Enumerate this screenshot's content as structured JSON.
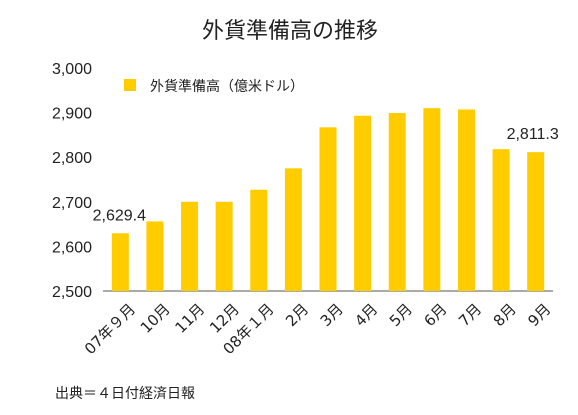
{
  "chart_data": {
    "type": "bar",
    "title": "外貨準備高の推移",
    "categories": [
      "07年９月",
      "10月",
      "11月",
      "12月",
      "08年１月",
      "2月",
      "3月",
      "4月",
      "5月",
      "6月",
      "7月",
      "8月",
      "9月"
    ],
    "series": [
      {
        "name": "外貨準備高（億米ドル）",
        "values": [
          2629.4,
          2656,
          2700,
          2700,
          2727,
          2775,
          2867,
          2893,
          2899,
          2910,
          2907,
          2818,
          2811.3
        ],
        "color": "#FFCC00"
      }
    ],
    "y_ticks": [
      "3,000",
      "2,900",
      "2,800",
      "2,700",
      "2,600",
      "2,500"
    ],
    "ylim": [
      2500,
      3000
    ],
    "data_labels": [
      {
        "index": 0,
        "text": "2,629.4"
      },
      {
        "index": 12,
        "text": "2,811.3"
      }
    ],
    "grid": false,
    "legend_position": "top-left",
    "source": "出典＝４日付経済日報"
  }
}
